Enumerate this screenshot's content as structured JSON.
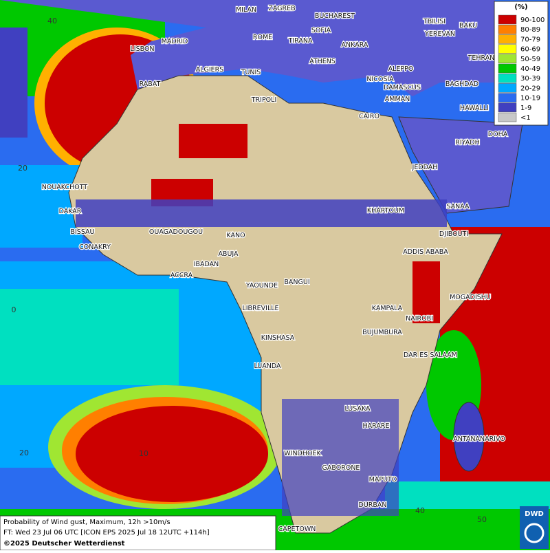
{
  "map": {
    "legend": {
      "title": "(%)",
      "items": [
        {
          "label": "90-100",
          "color": "#cc0000"
        },
        {
          "label": "80-89",
          "color": "#ff7f00"
        },
        {
          "label": "70-79",
          "color": "#ffb000"
        },
        {
          "label": "60-69",
          "color": "#ffff00"
        },
        {
          "label": "50-59",
          "color": "#a0e632"
        },
        {
          "label": "40-49",
          "color": "#00c800"
        },
        {
          "label": "30-39",
          "color": "#00e0c0"
        },
        {
          "label": "20-29",
          "color": "#00a8ff"
        },
        {
          "label": "10-19",
          "color": "#2a6cf0"
        },
        {
          "label": "1-9",
          "color": "#4040c0"
        },
        {
          "label": "<1",
          "color": "#c8c8c8"
        }
      ]
    },
    "cities": [
      "MILAN",
      "ZAGREB",
      "BUCHAREST",
      "MADRID",
      "ROME",
      "SOFIA",
      "TIRANA",
      "ANKARA",
      "TBILISI",
      "YEREVAN",
      "BAKU",
      "LISBON",
      "ATHENS",
      "TEHRAN",
      "ALGIERS",
      "TUNIS",
      "ALEPPO",
      "NICOSIA",
      "BAGHDAD",
      "RABAT",
      "DAMASCUS",
      "AMMAN",
      "TRIPOLI",
      "HAWALLI",
      "CAIRO",
      "RIYADH",
      "DOHA",
      "JEDDAH",
      "NOUAKCHOTT",
      "KHARTOUM",
      "SANAA",
      "DAKAR",
      "BISSAU",
      "DJIBOUTI",
      "OUAGADOUGOU",
      "KANO",
      "CONAKRY",
      "ADDIS ABABA",
      "ABUJA",
      "IBADAN",
      "ACCRA",
      "YAOUNDE",
      "BANGUI",
      "MOGADISHU",
      "LIBREVILLE",
      "KAMPALA",
      "NAIROBI",
      "BUJUMBURA",
      "KINSHASA",
      "DAR ES SALAAM",
      "LUANDA",
      "LUSAKA",
      "HARARE",
      "ANTANANARIVO",
      "WINDHOEK",
      "GABORONE",
      "MAPUTO",
      "DURBAN",
      "CAPETOWN"
    ],
    "grid_labels": [
      "40",
      "20",
      "0",
      "20",
      "10",
      "40",
      "50"
    ],
    "footer": [
      "Probability of Wind gust, Maximum, 12h >10m/s",
      "FT: Wed 23 Jul 06 UTC [ICON EPS 2025 Jul 18 12UTC +114h]",
      "©2025 Deutscher Wetterdienst"
    ],
    "logo": "DWD"
  }
}
